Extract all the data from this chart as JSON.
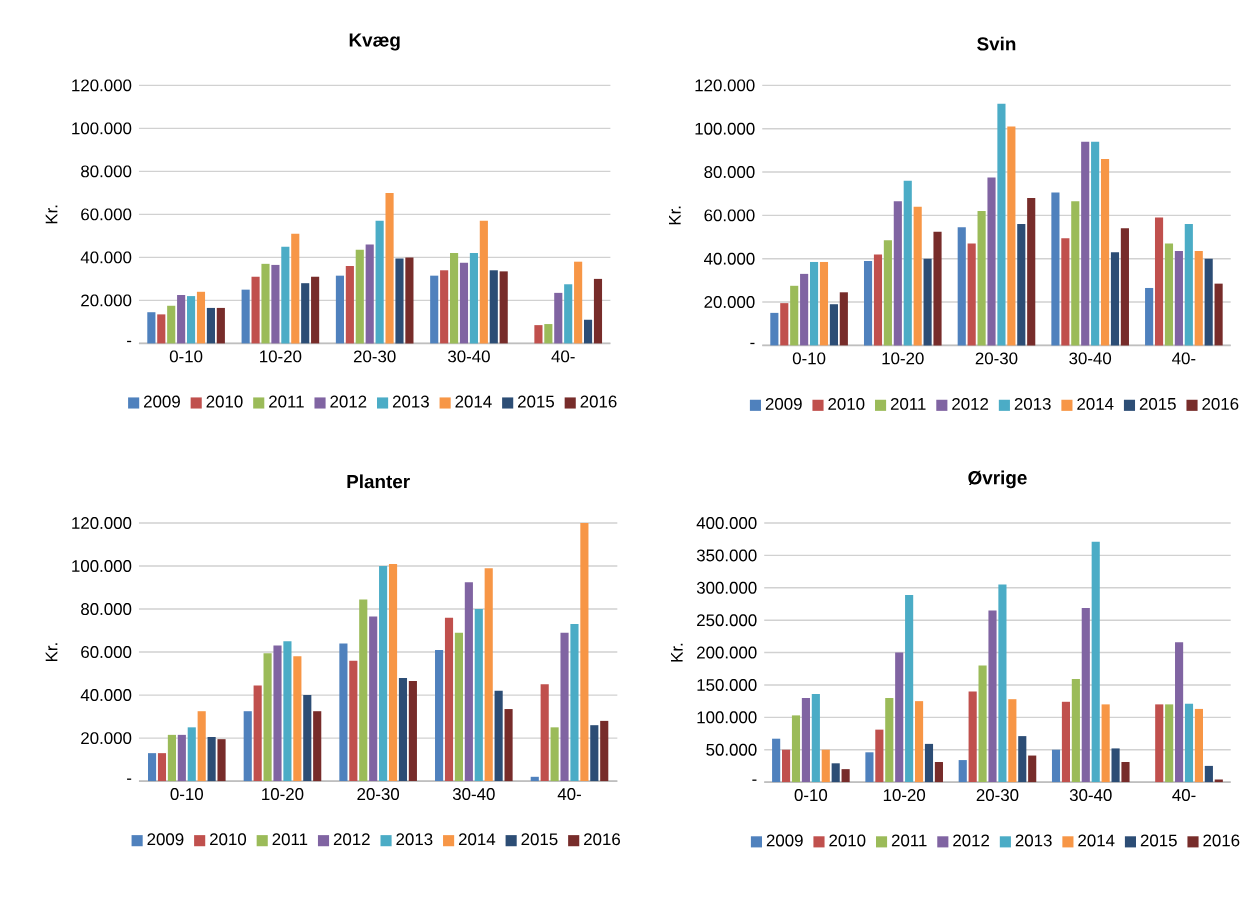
{
  "chart_data": [
    {
      "type": "bar",
      "title": "Kvæg",
      "ylabel": "Kr.",
      "categories": [
        "0-10",
        "10-20",
        "20-30",
        "30-40",
        "40-"
      ],
      "grid": "y",
      "legend": "bottom",
      "ylim": [
        0,
        120000
      ],
      "yticks": [
        {
          "value": 0,
          "label": "-"
        },
        {
          "value": 20000,
          "label": "20.000"
        },
        {
          "value": 40000,
          "label": "40.000"
        },
        {
          "value": 60000,
          "label": "60.000"
        },
        {
          "value": 80000,
          "label": "80.000"
        },
        {
          "value": 100000,
          "label": "100.000"
        },
        {
          "value": 120000,
          "label": "120.000"
        }
      ],
      "series": [
        {
          "name": "2009",
          "color": "#4f81bd",
          "values": [
            14500,
            25000,
            31500,
            31500,
            null
          ]
        },
        {
          "name": "2010",
          "color": "#c0504d",
          "values": [
            13500,
            31000,
            36000,
            34000,
            8500
          ]
        },
        {
          "name": "2011",
          "color": "#9bbb59",
          "values": [
            17500,
            37000,
            43500,
            42000,
            9000
          ]
        },
        {
          "name": "2012",
          "color": "#8064a2",
          "values": [
            22500,
            36500,
            46000,
            37500,
            23500
          ]
        },
        {
          "name": "2013",
          "color": "#4bacc6",
          "values": [
            22000,
            45000,
            57000,
            42000,
            27500
          ]
        },
        {
          "name": "2014",
          "color": "#f79646",
          "values": [
            24000,
            51000,
            70000,
            57000,
            38000
          ]
        },
        {
          "name": "2015",
          "color": "#2c4d75",
          "values": [
            16500,
            28000,
            39500,
            34000,
            11000
          ]
        },
        {
          "name": "2016",
          "color": "#772c2a",
          "values": [
            16500,
            31000,
            40000,
            33500,
            30000
          ]
        }
      ]
    },
    {
      "type": "bar",
      "title": "Svin",
      "ylabel": "Kr.",
      "categories": [
        "0-10",
        "10-20",
        "20-30",
        "30-40",
        "40-"
      ],
      "grid": "y",
      "legend": "bottom",
      "ylim": [
        0,
        120000
      ],
      "yticks": [
        {
          "value": 0,
          "label": "-"
        },
        {
          "value": 20000,
          "label": "20.000"
        },
        {
          "value": 40000,
          "label": "40.000"
        },
        {
          "value": 60000,
          "label": "60.000"
        },
        {
          "value": 80000,
          "label": "80.000"
        },
        {
          "value": 100000,
          "label": "100.000"
        },
        {
          "value": 120000,
          "label": "120.000"
        }
      ],
      "series": [
        {
          "name": "2009",
          "color": "#4f81bd",
          "values": [
            15000,
            39000,
            54500,
            70500,
            26500
          ]
        },
        {
          "name": "2010",
          "color": "#c0504d",
          "values": [
            19500,
            42000,
            47000,
            49500,
            59000
          ]
        },
        {
          "name": "2011",
          "color": "#9bbb59",
          "values": [
            27500,
            48500,
            62000,
            66500,
            47000
          ]
        },
        {
          "name": "2012",
          "color": "#8064a2",
          "values": [
            33000,
            66500,
            77500,
            94000,
            43500
          ]
        },
        {
          "name": "2013",
          "color": "#4bacc6",
          "values": [
            38500,
            76000,
            111500,
            94000,
            56000
          ]
        },
        {
          "name": "2014",
          "color": "#f79646",
          "values": [
            38500,
            64000,
            101000,
            86000,
            43500
          ]
        },
        {
          "name": "2015",
          "color": "#2c4d75",
          "values": [
            19000,
            40000,
            56000,
            43000,
            40000
          ]
        },
        {
          "name": "2016",
          "color": "#772c2a",
          "values": [
            24500,
            52500,
            68000,
            54000,
            28500
          ]
        }
      ]
    },
    {
      "type": "bar",
      "title": "Planter",
      "ylabel": "Kr.",
      "categories": [
        "0-10",
        "10-20",
        "20-30",
        "30-40",
        "40-"
      ],
      "grid": "y",
      "legend": "bottom",
      "ylim": [
        0,
        120000
      ],
      "yticks": [
        {
          "value": 0,
          "label": "-"
        },
        {
          "value": 20000,
          "label": "20.000"
        },
        {
          "value": 40000,
          "label": "40.000"
        },
        {
          "value": 60000,
          "label": "60.000"
        },
        {
          "value": 80000,
          "label": "80.000"
        },
        {
          "value": 100000,
          "label": "100.000"
        },
        {
          "value": 120000,
          "label": "120.000"
        }
      ],
      "series": [
        {
          "name": "2009",
          "color": "#4f81bd",
          "values": [
            13000,
            32500,
            64000,
            61000,
            2000
          ]
        },
        {
          "name": "2010",
          "color": "#c0504d",
          "values": [
            13000,
            44500,
            56000,
            76000,
            45000
          ]
        },
        {
          "name": "2011",
          "color": "#9bbb59",
          "values": [
            21500,
            59500,
            84500,
            69000,
            25000
          ]
        },
        {
          "name": "2012",
          "color": "#8064a2",
          "values": [
            21500,
            63000,
            76500,
            92500,
            69000
          ]
        },
        {
          "name": "2013",
          "color": "#4bacc6",
          "values": [
            25000,
            65000,
            100000,
            80000,
            73000
          ]
        },
        {
          "name": "2014",
          "color": "#f79646",
          "values": [
            32500,
            58000,
            101000,
            99000,
            120000
          ]
        },
        {
          "name": "2015",
          "color": "#2c4d75",
          "values": [
            20500,
            40000,
            48000,
            42000,
            26000
          ]
        },
        {
          "name": "2016",
          "color": "#772c2a",
          "values": [
            19500,
            32500,
            46500,
            33500,
            28000
          ]
        }
      ]
    },
    {
      "type": "bar",
      "title": "Øvrige",
      "ylabel": "Kr.",
      "categories": [
        "0-10",
        "10-20",
        "20-30",
        "30-40",
        "40-"
      ],
      "grid": "y",
      "legend": "bottom",
      "ylim": [
        0,
        400000
      ],
      "yticks": [
        {
          "value": 0,
          "label": "-"
        },
        {
          "value": 50000,
          "label": "50.000"
        },
        {
          "value": 100000,
          "label": "100.000"
        },
        {
          "value": 150000,
          "label": "150.000"
        },
        {
          "value": 200000,
          "label": "200.000"
        },
        {
          "value": 250000,
          "label": "250.000"
        },
        {
          "value": 300000,
          "label": "300.000"
        },
        {
          "value": 350000,
          "label": "350.000"
        },
        {
          "value": 400000,
          "label": "400.000"
        }
      ],
      "series": [
        {
          "name": "2009",
          "color": "#4f81bd",
          "values": [
            67000,
            46000,
            34000,
            50000,
            null
          ]
        },
        {
          "name": "2010",
          "color": "#c0504d",
          "values": [
            50000,
            81000,
            140000,
            124000,
            120000
          ]
        },
        {
          "name": "2011",
          "color": "#9bbb59",
          "values": [
            103000,
            130000,
            180000,
            159000,
            120000
          ]
        },
        {
          "name": "2012",
          "color": "#8064a2",
          "values": [
            130000,
            200000,
            265000,
            269000,
            216000
          ]
        },
        {
          "name": "2013",
          "color": "#4bacc6",
          "values": [
            136000,
            289000,
            305000,
            371000,
            121000
          ]
        },
        {
          "name": "2014",
          "color": "#f79646",
          "values": [
            50000,
            125000,
            128000,
            120000,
            113000
          ]
        },
        {
          "name": "2015",
          "color": "#2c4d75",
          "values": [
            29000,
            59000,
            71000,
            52000,
            25000
          ]
        },
        {
          "name": "2016",
          "color": "#772c2a",
          "values": [
            20000,
            31000,
            41000,
            31000,
            4000
          ]
        }
      ]
    }
  ]
}
